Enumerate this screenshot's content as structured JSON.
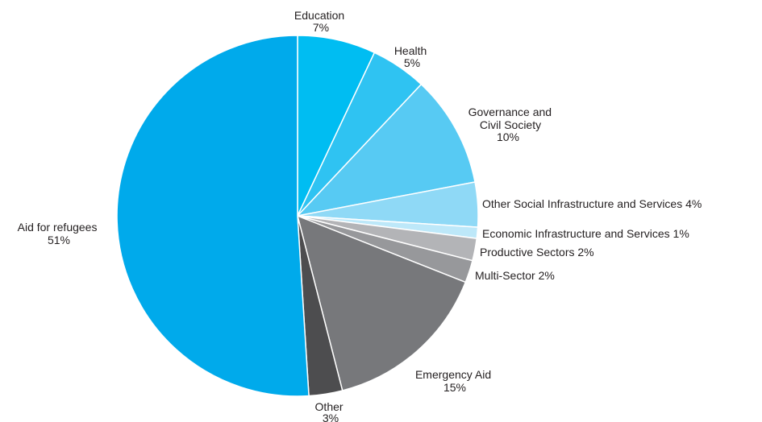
{
  "chart_data": {
    "type": "pie",
    "slices": [
      {
        "name": "Education",
        "value": 7,
        "label": "7%",
        "color": "#00bdf2"
      },
      {
        "name": "Health",
        "value": 5,
        "label": "5%",
        "color": "#2fc3f2"
      },
      {
        "name": "Governance and Civil Society",
        "value": 10,
        "label": "10%",
        "color": "#57caf3"
      },
      {
        "name": "Other Social Infrastructure and Services",
        "value": 4,
        "label": "4%",
        "color": "#8fd9f6"
      },
      {
        "name": "Economic Infrastructure and Services",
        "value": 1,
        "label": "1%",
        "color": "#bde8f9"
      },
      {
        "name": "Productive Sectors",
        "value": 2,
        "label": "2%",
        "color": "#b3b4b7"
      },
      {
        "name": "Multi-Sector",
        "value": 2,
        "label": "2%",
        "color": "#97989b"
      },
      {
        "name": "Emergency Aid",
        "value": 15,
        "label": "15%",
        "color": "#77787b"
      },
      {
        "name": "Other",
        "value": 3,
        "label": "3%",
        "color": "#4d4d4f"
      },
      {
        "name": "Aid for refugees",
        "value": 51,
        "label": "51%",
        "color": "#00aaeb"
      }
    ],
    "labels": {
      "education": {
        "line1": "Education",
        "line2": "7%"
      },
      "health": {
        "line1": "Health",
        "line2": "5%"
      },
      "governance": {
        "line1": "Governance and",
        "line2": "Civil Society",
        "line3": "10%"
      },
      "other_social": {
        "line1": "Other Social Infrastructure and Services 4%"
      },
      "economic": {
        "line1": "Economic Infrastructure and Services 1%"
      },
      "productive": {
        "line1": "Productive Sectors 2%"
      },
      "multi_sector": {
        "line1": "Multi-Sector 2%"
      },
      "emergency": {
        "line1": "Emergency Aid",
        "line2": "15%"
      },
      "other": {
        "line1": "Other",
        "line2": "3%"
      },
      "refugees": {
        "line1": "Aid for refugees",
        "line2": "51%"
      }
    }
  }
}
